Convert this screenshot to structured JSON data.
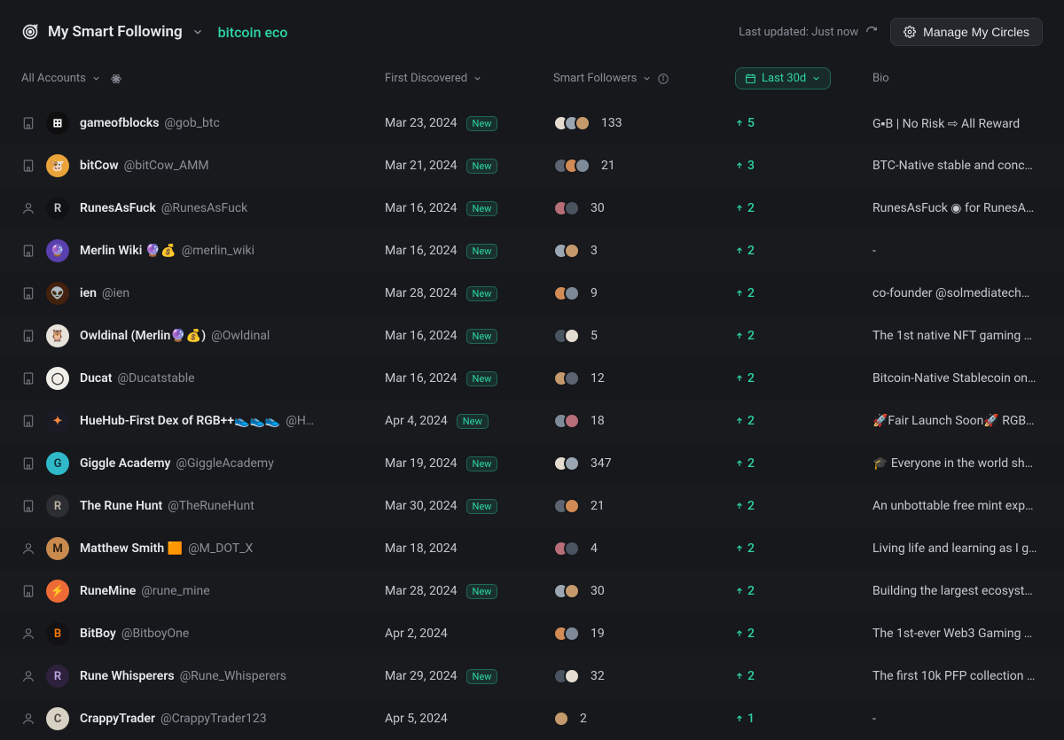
{
  "header": {
    "title": "My Smart Following",
    "chip": "bitcoin eco",
    "last_updated_label": "Last updated: Just now",
    "manage_label": "Manage My Circles"
  },
  "columns": {
    "accounts": "All Accounts",
    "first_discovered": "First Discovered",
    "smart_followers": "Smart Followers",
    "period": "Last 30d",
    "bio": "Bio"
  },
  "badges": {
    "new": "New"
  },
  "colors": {
    "accent": "#2dd4a7",
    "bg": "#16181c",
    "text": "#e6e8eb",
    "muted": "#8a8f98",
    "mini_palette": [
      "#e4dccf",
      "#9aa7b2",
      "#c49a6c",
      "#5b6470",
      "#d28b54",
      "#7e8a97",
      "#b76e79",
      "#4a5460"
    ]
  },
  "account_icons": {
    "org": "building",
    "person": "user"
  },
  "rows": [
    {
      "type": "org",
      "avatar": {
        "bg": "#0f0f10",
        "fg": "#ffffff",
        "letter": "⊞"
      },
      "name": "gameofblocks",
      "handle": "@gob_btc",
      "date": "Mar 23, 2024",
      "is_new": true,
      "mini_count": 3,
      "followers": 133,
      "delta": 5,
      "bio": "G▪B | No Risk ⇨ All Reward"
    },
    {
      "type": "org",
      "avatar": {
        "bg": "#e8a33a",
        "fg": "#5a3a11",
        "letter": "🐮"
      },
      "name": "bitCow",
      "handle": "@bitCow_AMM",
      "date": "Mar 21, 2024",
      "is_new": true,
      "mini_count": 3,
      "followers": 21,
      "delta": 3,
      "bio": "BTC-Native stable and conc…"
    },
    {
      "type": "person",
      "avatar": {
        "bg": "#111215",
        "fg": "#c7cacc",
        "letter": "R"
      },
      "name": "RunesAsFuck",
      "handle": "@RunesAsFuck",
      "date": "Mar 16, 2024",
      "is_new": true,
      "mini_count": 2,
      "followers": 30,
      "delta": 2,
      "bio": "RunesAsFuck ◉ for RunesAs…"
    },
    {
      "type": "org",
      "avatar": {
        "bg": "#5a3fae",
        "fg": "#f0e8ff",
        "letter": "🔮"
      },
      "name": "Merlin Wiki 🔮💰",
      "handle": "@merlin_wiki",
      "date": "Mar 16, 2024",
      "is_new": true,
      "mini_count": 2,
      "followers": 3,
      "delta": 2,
      "bio": "-"
    },
    {
      "type": "org",
      "avatar": {
        "bg": "#43210f",
        "fg": "#ffd27a",
        "letter": "👽"
      },
      "name": "ien",
      "handle": "@ien",
      "date": "Mar 28, 2024",
      "is_new": true,
      "mini_count": 2,
      "followers": 9,
      "delta": 2,
      "bio": "co-founder @solmediatech…"
    },
    {
      "type": "org",
      "avatar": {
        "bg": "#e7e2da",
        "fg": "#3a2f2a",
        "letter": "🦉"
      },
      "name": "Owldinal (Merlin🔮💰)",
      "handle": "@Owldinal",
      "date": "Mar 16, 2024",
      "is_new": true,
      "mini_count": 2,
      "followers": 5,
      "delta": 2,
      "bio": "The 1st native NFT gaming p…"
    },
    {
      "type": "org",
      "avatar": {
        "bg": "#efeee8",
        "fg": "#3a3a3a",
        "letter": "◯"
      },
      "name": "Ducat",
      "handle": "@Ducatstable",
      "date": "Mar 16, 2024",
      "is_new": true,
      "mini_count": 2,
      "followers": 12,
      "delta": 2,
      "bio": "Bitcoin-Native Stablecoin on…"
    },
    {
      "type": "org",
      "avatar": {
        "bg": "#1a1b25",
        "fg": "#ff8a3d",
        "letter": "✦"
      },
      "name": "HueHub-First Dex of RGB++👟👟👟",
      "handle": "@H…",
      "date": "Apr 4, 2024",
      "is_new": true,
      "mini_count": 2,
      "followers": 18,
      "delta": 2,
      "bio": "🚀Fair Launch Soon🚀 RGB+…"
    },
    {
      "type": "org",
      "avatar": {
        "bg": "#2fb9c9",
        "fg": "#113038",
        "letter": "G"
      },
      "name": "Giggle Academy",
      "handle": "@GiggleAcademy",
      "date": "Mar 19, 2024",
      "is_new": true,
      "mini_count": 2,
      "followers": 347,
      "delta": 2,
      "bio": "🎓 Everyone in the world sho…"
    },
    {
      "type": "org",
      "avatar": {
        "bg": "#2c2e33",
        "fg": "#bfb6a6",
        "letter": "R"
      },
      "name": "The Rune Hunt",
      "handle": "@TheRuneHunt",
      "date": "Mar 30, 2024",
      "is_new": true,
      "mini_count": 2,
      "followers": 21,
      "delta": 2,
      "bio": "An unbottable free mint expe…"
    },
    {
      "type": "person",
      "avatar": {
        "bg": "#c98a4e",
        "fg": "#23180f",
        "letter": "M"
      },
      "name": "Matthew Smith 🟧",
      "handle": "@M_DOT_X",
      "date": "Mar 18, 2024",
      "is_new": false,
      "mini_count": 2,
      "followers": 4,
      "delta": 2,
      "bio": "Living life and learning as I g…"
    },
    {
      "type": "org",
      "avatar": {
        "bg": "#ef6b35",
        "fg": "#2a1208",
        "letter": "⚡"
      },
      "name": "RuneMine",
      "handle": "@rune_mine",
      "date": "Mar 28, 2024",
      "is_new": true,
      "mini_count": 2,
      "followers": 30,
      "delta": 2,
      "bio": "Building the largest ecosyste…"
    },
    {
      "type": "person",
      "avatar": {
        "bg": "#121214",
        "fg": "#ff7a00",
        "letter": "B"
      },
      "name": "BitBoy",
      "handle": "@BitboyOne",
      "date": "Apr 2, 2024",
      "is_new": false,
      "mini_count": 2,
      "followers": 19,
      "delta": 2,
      "bio": "The 1st-ever Web3 Gaming …"
    },
    {
      "type": "person",
      "avatar": {
        "bg": "#2d213d",
        "fg": "#bda8e8",
        "letter": "R"
      },
      "name": "Rune Whisperers",
      "handle": "@Rune_Whisperers",
      "date": "Mar 29, 2024",
      "is_new": true,
      "mini_count": 2,
      "followers": 32,
      "delta": 2,
      "bio": "The first 10k PFP collection f…"
    },
    {
      "type": "person",
      "avatar": {
        "bg": "#d7d2c4",
        "fg": "#4a4336",
        "letter": "C"
      },
      "name": "CrappyTrader",
      "handle": "@CrappyTrader123",
      "date": "Apr 5, 2024",
      "is_new": false,
      "mini_count": 1,
      "followers": 2,
      "delta": 1,
      "bio": "-"
    }
  ]
}
